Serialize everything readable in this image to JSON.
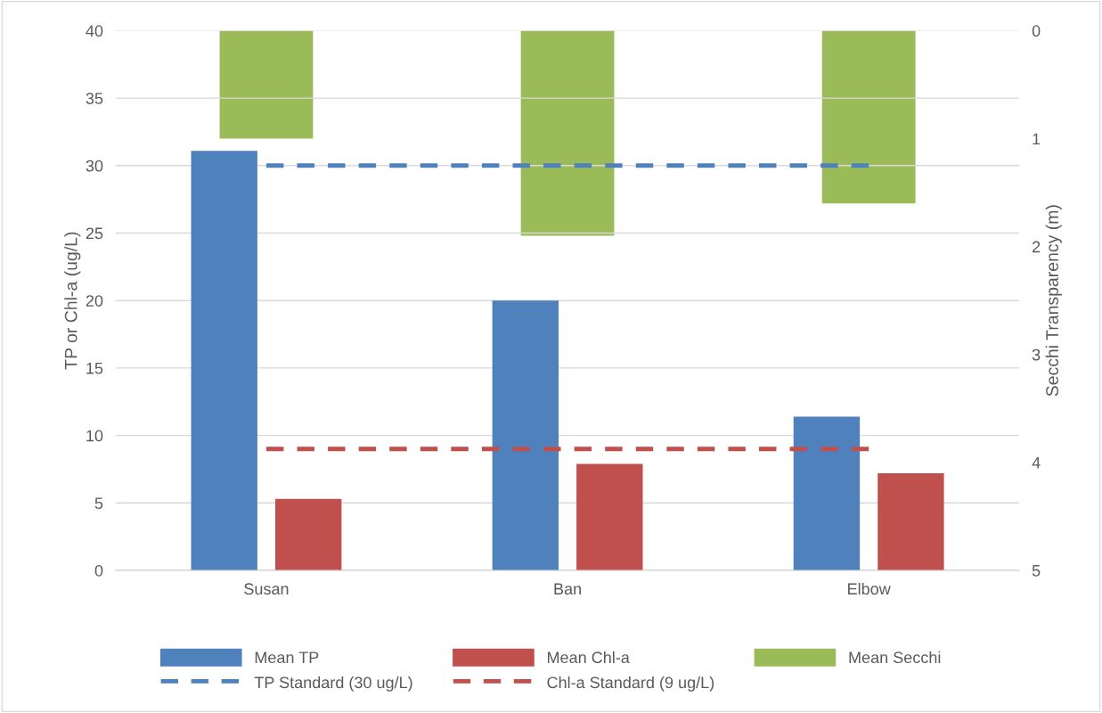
{
  "chart_data": {
    "type": "bar",
    "categories": [
      "Susan",
      "Ban",
      "Elbow"
    ],
    "ylabel": "TP or Chl-a (ug/L)",
    "y2label": "Secchi Transparency (m)",
    "ylim": [
      0,
      40
    ],
    "yticks": [
      0,
      5,
      10,
      15,
      20,
      25,
      30,
      35,
      40
    ],
    "y2lim": [
      5,
      0
    ],
    "y2ticks": [
      0,
      1,
      2,
      3,
      4,
      5
    ],
    "grid": "y",
    "legend": "bottom",
    "series": [
      {
        "name": "Mean TP",
        "color": "#4f81bd",
        "values": [
          31.1,
          20.0,
          11.4
        ]
      },
      {
        "name": "Mean Chl-a",
        "color": "#c0504d",
        "values": [
          5.3,
          7.9,
          7.2
        ]
      },
      {
        "name": "Mean Secchi",
        "color": "#9bbb59",
        "values": [
          1.0,
          1.9,
          1.6
        ],
        "axis": "y2"
      },
      {
        "name": "TP Standard (30 ug/L)",
        "color": "#4f81bd",
        "values": [
          30,
          30,
          30
        ],
        "type": "line",
        "line_style": "dashed",
        "marker": "none"
      },
      {
        "name": "Chl-a Standard (9 ug/L)",
        "color": "#c0504d",
        "values": [
          9,
          9,
          9
        ],
        "type": "line",
        "line_style": "dashed",
        "marker": "none"
      }
    ]
  }
}
